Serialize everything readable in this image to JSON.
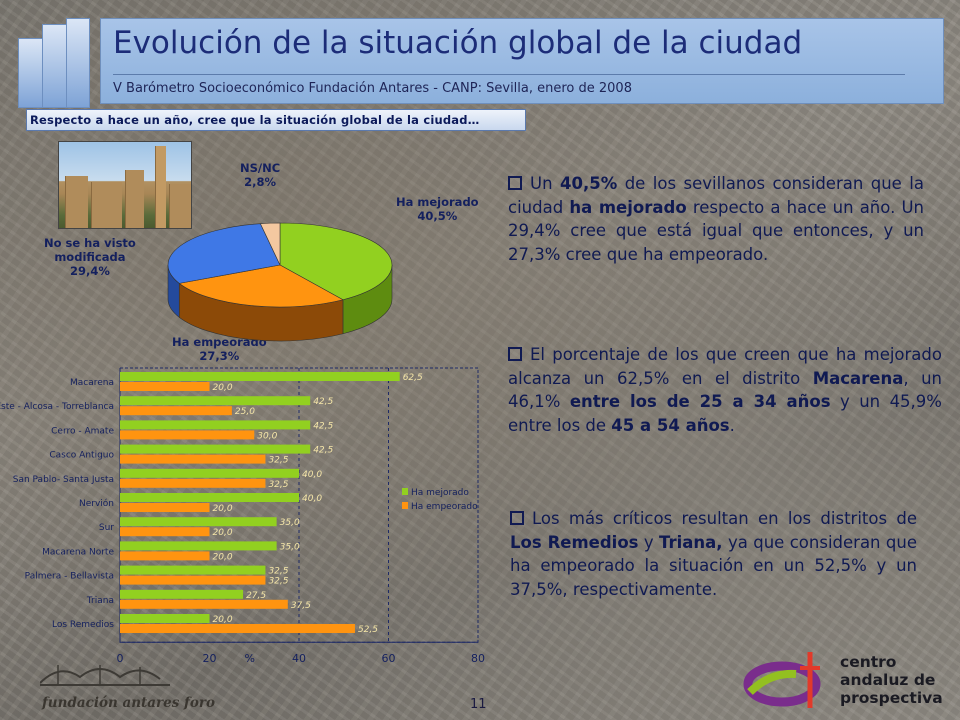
{
  "header": {
    "title": "Evolución de la situación global de la ciudad",
    "subtitle": "V Barómetro Socioeconómico Fundación Antares - CANP: Sevilla, enero de 2008"
  },
  "question": "Respecto a hace un año, cree que la situación global de la ciudad…",
  "pie_labels": {
    "nsnc_name": "NS/NC",
    "nsnc_value": "2,8%",
    "mejorado_name": "Ha mejorado",
    "mejorado_value": "40,5%",
    "nosevisto_line1": "No se ha visto",
    "nosevisto_line2": "modificada",
    "nosevisto_value": "29,4%",
    "empeorado_name": "Ha empeorado",
    "empeorado_value": "27,3%"
  },
  "colors": {
    "mejorado": "#92d020",
    "empeorado": "#ff9410",
    "nosevisto": "#3f78e6",
    "empeorado_pie": "#8c4a08",
    "nsnc": "#f4c8a0",
    "text_dark": "#101a52",
    "header_bg": "#9ebde6"
  },
  "chart_data": [
    {
      "type": "pie",
      "title": "",
      "slices": [
        {
          "name": "Ha mejorado",
          "value": 40.5,
          "label": "40,5%"
        },
        {
          "name": "Ha empeorado",
          "value": 27.3,
          "label": "27,3%"
        },
        {
          "name": "No se ha visto modificada",
          "value": 29.4,
          "label": "29,4%"
        },
        {
          "name": "NS/NC",
          "value": 2.8,
          "label": "2,8%"
        }
      ]
    },
    {
      "type": "bar",
      "orientation": "horizontal",
      "categories": [
        "Macarena",
        "Este - Alcosa - Torreblanca",
        "Cerro - Amate",
        "Casco Antiguo",
        "San Pablo- Santa Justa",
        "Nervión",
        "Sur",
        "Macarena Norte",
        "Palmera - Bellavista",
        "Triana",
        "Los Remedios"
      ],
      "series": [
        {
          "name": "Ha mejorado",
          "values": [
            62.5,
            42.5,
            42.5,
            42.5,
            40.0,
            40.0,
            35.0,
            35.0,
            32.5,
            27.5,
            20.0
          ],
          "labels": [
            "62,5",
            "42,5",
            "42,5",
            "42,5",
            "40,0",
            "40,0",
            "35,0",
            "35,0",
            "32,5",
            "27,5",
            "20,0"
          ]
        },
        {
          "name": "Ha empeorado",
          "values": [
            20.0,
            25.0,
            30.0,
            32.5,
            32.5,
            20.0,
            20.0,
            20.0,
            32.5,
            37.5,
            52.5
          ],
          "labels": [
            "20,0",
            "25,0",
            "30,0",
            "32,5",
            "32,5",
            "20,0",
            "20,0",
            "20,0",
            "32,5",
            "37,5",
            "52,5"
          ]
        }
      ],
      "xlim": [
        0,
        80
      ],
      "xticks": [
        "0",
        "20",
        "40",
        "60",
        "80"
      ],
      "xlabel": "%",
      "legend_position": "right",
      "gridlines": "dashed vertical at 40 and 60"
    }
  ],
  "paragraphs": {
    "p1": {
      "a": "Un ",
      "b": "40,5%",
      "c": " de los sevillanos consideran que la ciudad ",
      "d": "ha mejorado",
      "e": " respecto a hace un año. Un 29,4% cree que está igual que entonces, y un 27,3% cree que ha empeorado."
    },
    "p2": {
      "a": "El porcentaje de los que creen que ha mejorado alcanza un 62,5% en el distrito ",
      "b": "Macarena",
      "c": ", un 46,1% ",
      "d": "entre los de 25 a 34 años",
      "e": " y un 45,9% entre los de ",
      "f": "45 a 54 años",
      "g": "."
    },
    "p3": {
      "a": "Los más críticos resultan en los distritos de ",
      "b": "Los Remedios",
      "c": " y ",
      "d": "Triana,",
      "e": " ya que consideran que  ha empeorado la situación en un 52,5% y un 37,5%, respectivamente."
    }
  },
  "footer": {
    "page_number": "11",
    "left_logo_text": "fundación antares foro",
    "right_logo_lines": [
      "centro",
      "andaluz de",
      "prospectiva"
    ]
  }
}
